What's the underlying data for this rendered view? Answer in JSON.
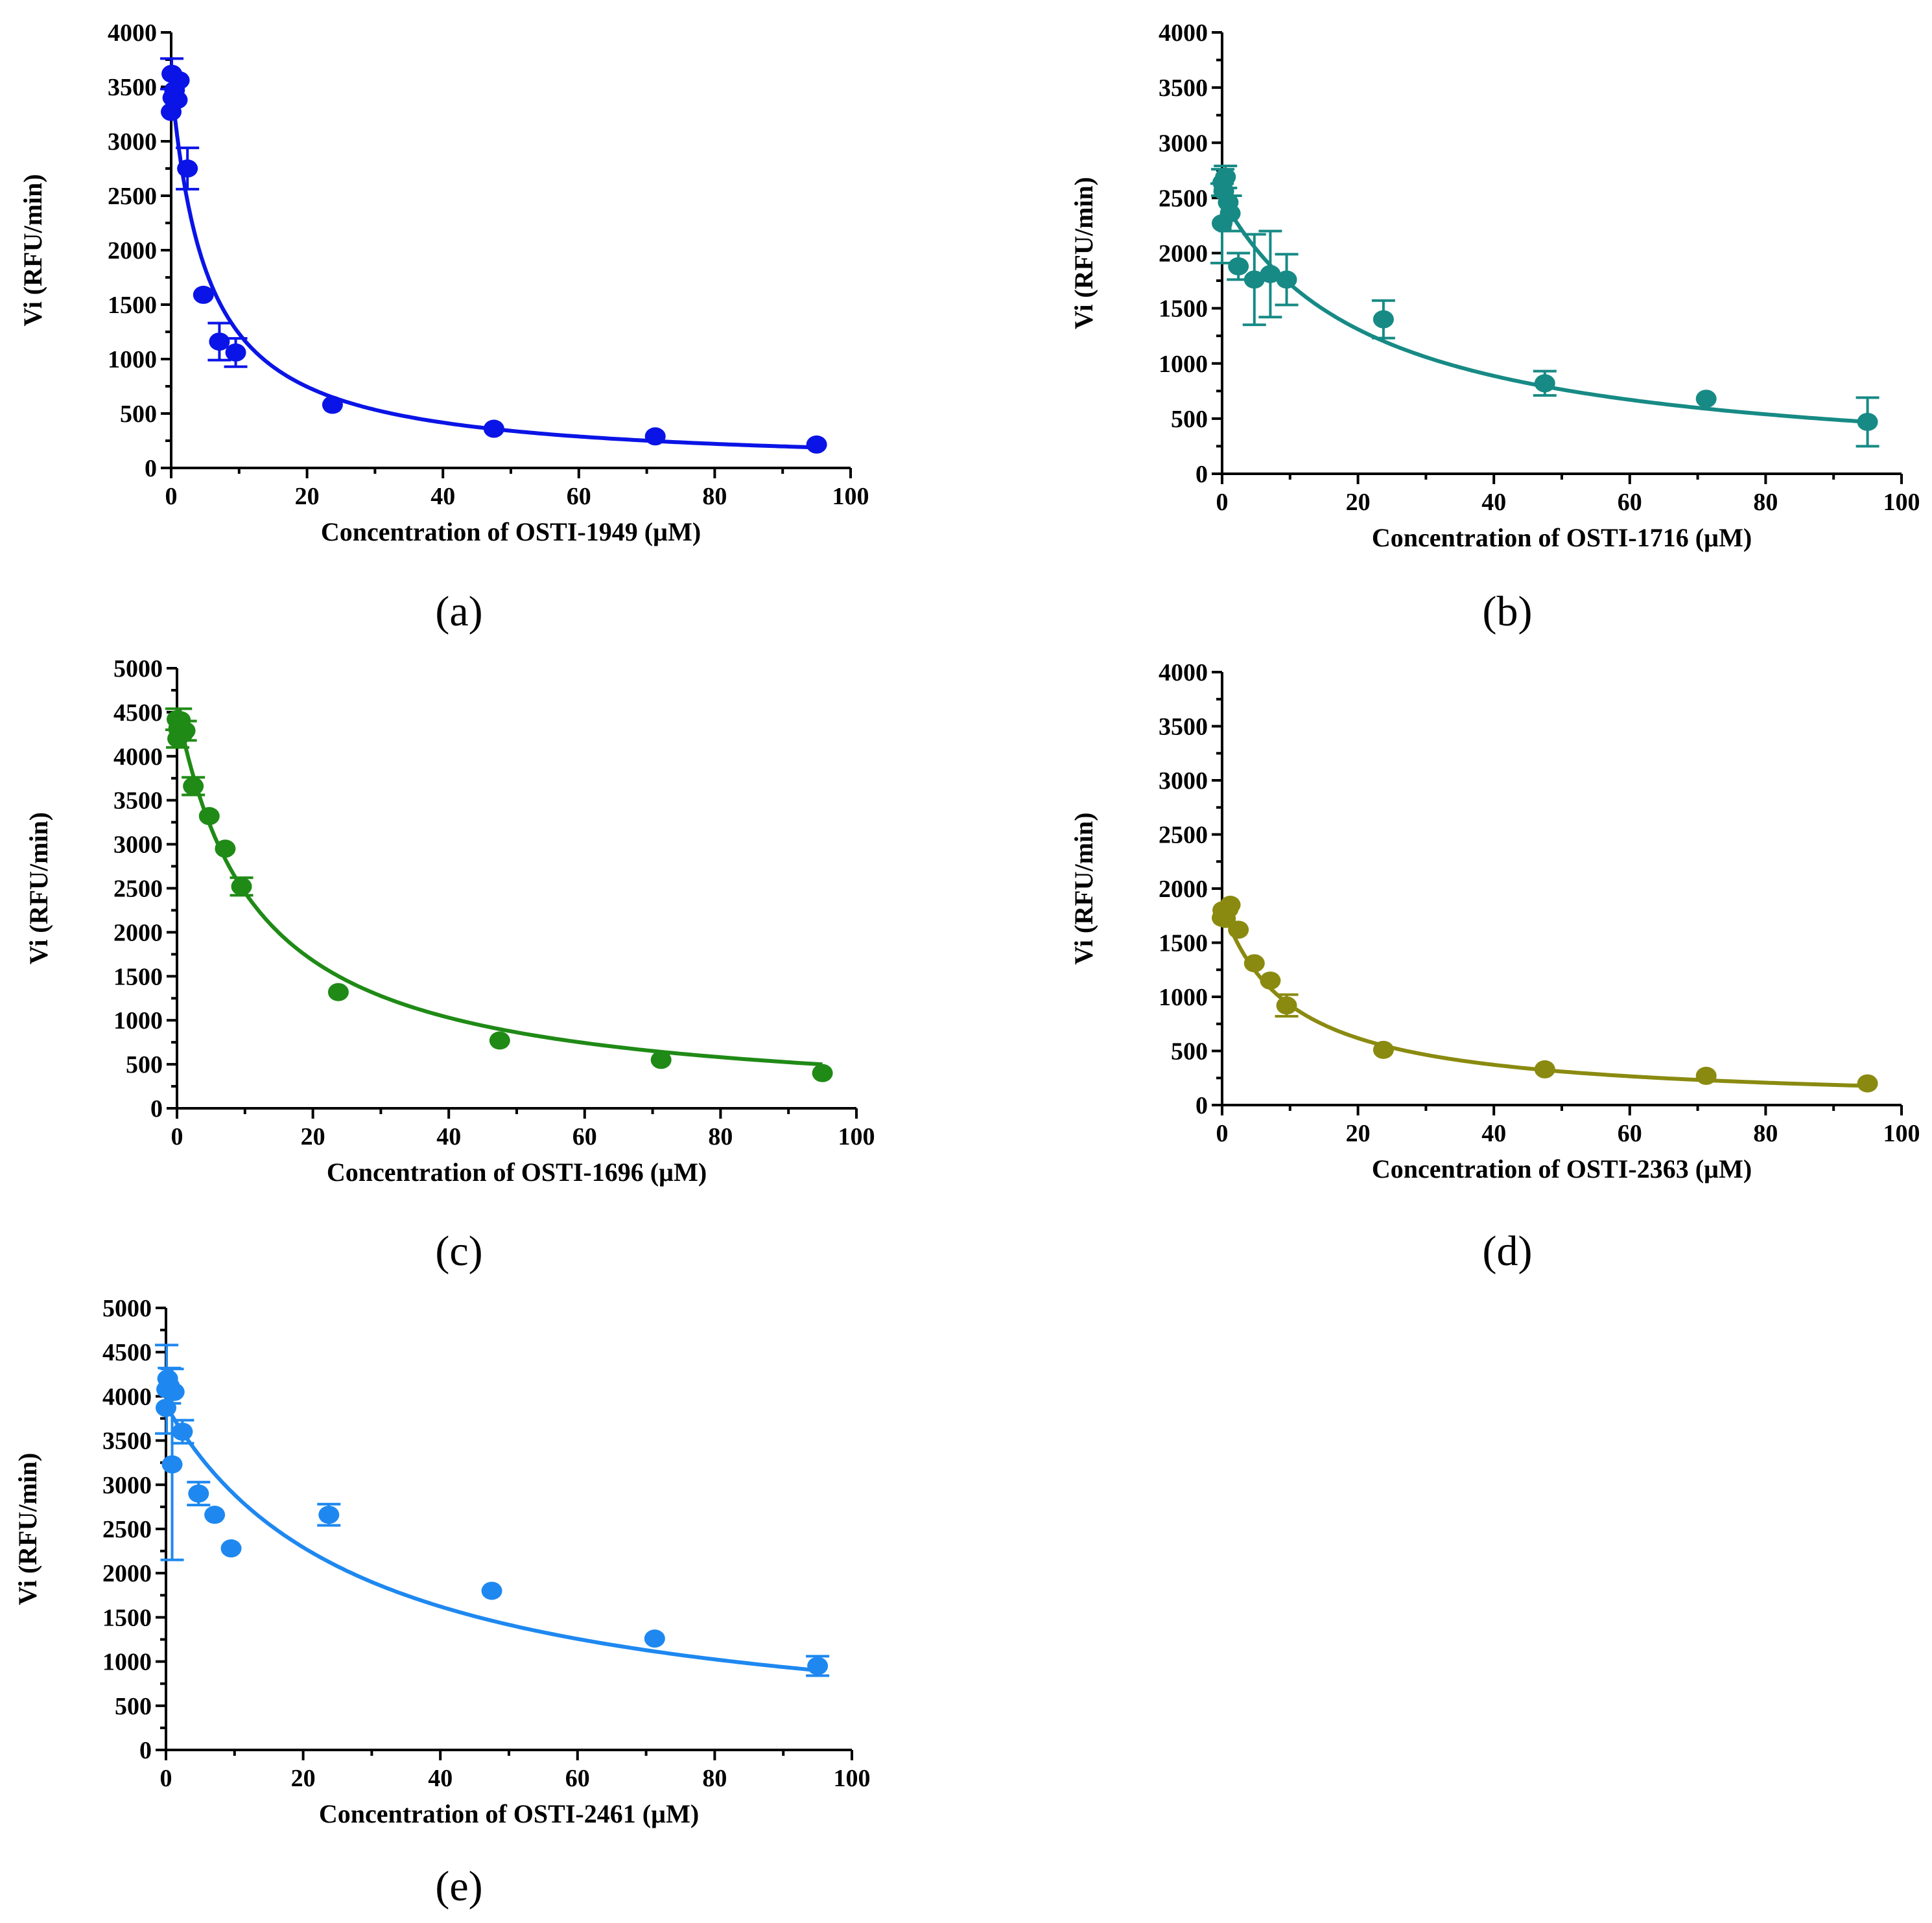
{
  "chart_data": [
    {
      "type": "scatter",
      "panel": "(a)",
      "xlabel": "Concentration of OSTI-1949 (µM)",
      "ylabel": "Vi (RFU/min)",
      "xlim": [
        0,
        100
      ],
      "ylim": [
        0,
        4000
      ],
      "xticks": [
        0,
        20,
        40,
        60,
        80,
        100
      ],
      "yticks": [
        0,
        500,
        1000,
        1500,
        2000,
        2500,
        3000,
        3500,
        4000
      ],
      "color": "#0a14e6",
      "points": [
        {
          "x": 0.0,
          "y": 3270,
          "err": 0
        },
        {
          "x": 0.1,
          "y": 3620,
          "err": 140
        },
        {
          "x": 0.25,
          "y": 3400,
          "err": 0
        },
        {
          "x": 0.5,
          "y": 3470,
          "err": 0
        },
        {
          "x": 0.9,
          "y": 3380,
          "err": 0
        },
        {
          "x": 1.2,
          "y": 3560,
          "err": 0
        },
        {
          "x": 2.4,
          "y": 2750,
          "err": 190
        },
        {
          "x": 4.75,
          "y": 1590,
          "err": 0
        },
        {
          "x": 7.1,
          "y": 1160,
          "err": 170
        },
        {
          "x": 9.5,
          "y": 1060,
          "err": 130
        },
        {
          "x": 23.75,
          "y": 580,
          "err": 0
        },
        {
          "x": 47.5,
          "y": 360,
          "err": 0
        },
        {
          "x": 71.25,
          "y": 290,
          "err": 0
        },
        {
          "x": 95.0,
          "y": 215,
          "err": 0
        }
      ],
      "fit": {
        "model": "v0/(1+x/ic50)",
        "v0": 3560,
        "ic50": 5.3
      }
    },
    {
      "type": "scatter",
      "panel": "(b)",
      "xlabel": "Concentration of OSTI-1716 (µM)",
      "ylabel": "Vi (RFU/min)",
      "xlim": [
        0,
        100
      ],
      "ylim": [
        0,
        4000
      ],
      "xticks": [
        0,
        20,
        40,
        60,
        80,
        100
      ],
      "yticks": [
        0,
        500,
        1000,
        1500,
        2000,
        2500,
        3000,
        3500,
        4000
      ],
      "color": "#178a85",
      "points": [
        {
          "x": 0.0,
          "y": 2270,
          "err": 360
        },
        {
          "x": 0.1,
          "y": 2640,
          "err": 120
        },
        {
          "x": 0.25,
          "y": 2560,
          "err": 0
        },
        {
          "x": 0.5,
          "y": 2690,
          "err": 100
        },
        {
          "x": 0.9,
          "y": 2460,
          "err": 0
        },
        {
          "x": 1.2,
          "y": 2360,
          "err": 160
        },
        {
          "x": 2.4,
          "y": 1880,
          "err": 120
        },
        {
          "x": 4.75,
          "y": 1760,
          "err": 410
        },
        {
          "x": 7.1,
          "y": 1810,
          "err": 390
        },
        {
          "x": 9.5,
          "y": 1760,
          "err": 230
        },
        {
          "x": 23.75,
          "y": 1400,
          "err": 170
        },
        {
          "x": 47.5,
          "y": 820,
          "err": 110
        },
        {
          "x": 71.25,
          "y": 680,
          "err": 0
        },
        {
          "x": 95.0,
          "y": 470,
          "err": 220
        }
      ],
      "fit": {
        "model": "v0/(1+x/ic50)",
        "v0": 2500,
        "ic50": 22
      }
    },
    {
      "type": "scatter",
      "panel": "(c)",
      "xlabel": "Concentration of OSTI-1696 (µM)",
      "ylabel": "Vi (RFU/min)",
      "xlim": [
        0,
        100
      ],
      "ylim": [
        0,
        5000
      ],
      "xticks": [
        0,
        20,
        40,
        60,
        80,
        100
      ],
      "yticks": [
        0,
        500,
        1000,
        1500,
        2000,
        2500,
        3000,
        3500,
        4000,
        4500,
        5000
      ],
      "color": "#1f8a16",
      "points": [
        {
          "x": 0.0,
          "y": 4420,
          "err": 120
        },
        {
          "x": 0.1,
          "y": 4200,
          "err": 100
        },
        {
          "x": 0.25,
          "y": 4320,
          "err": 0
        },
        {
          "x": 0.5,
          "y": 4410,
          "err": 130
        },
        {
          "x": 0.9,
          "y": 4260,
          "err": 0
        },
        {
          "x": 1.2,
          "y": 4290,
          "err": 110
        },
        {
          "x": 2.4,
          "y": 3660,
          "err": 100
        },
        {
          "x": 4.75,
          "y": 3320,
          "err": 0
        },
        {
          "x": 7.1,
          "y": 2950,
          "err": 0
        },
        {
          "x": 9.5,
          "y": 2520,
          "err": 100
        },
        {
          "x": 23.75,
          "y": 1320,
          "err": 0
        },
        {
          "x": 47.5,
          "y": 770,
          "err": 0
        },
        {
          "x": 71.25,
          "y": 550,
          "err": 0
        },
        {
          "x": 95.0,
          "y": 400,
          "err": 0
        }
      ],
      "fit": {
        "model": "v0/(1+x/ic50)",
        "v0": 4550,
        "ic50": 11.7
      }
    },
    {
      "type": "scatter",
      "panel": "(d)",
      "xlabel": "Concentration of OSTI-2363 (µM)",
      "ylabel": "Vi (RFU/min)",
      "xlim": [
        0,
        100
      ],
      "ylim": [
        0,
        4000
      ],
      "xticks": [
        0,
        20,
        40,
        60,
        80,
        100
      ],
      "yticks": [
        0,
        500,
        1000,
        1500,
        2000,
        2500,
        3000,
        3500,
        4000
      ],
      "color": "#8a8a10",
      "points": [
        {
          "x": 0.0,
          "y": 1730,
          "err": 0
        },
        {
          "x": 0.1,
          "y": 1800,
          "err": 0
        },
        {
          "x": 0.25,
          "y": 1760,
          "err": 0
        },
        {
          "x": 0.5,
          "y": 1720,
          "err": 0
        },
        {
          "x": 0.9,
          "y": 1810,
          "err": 0
        },
        {
          "x": 1.2,
          "y": 1850,
          "err": 0
        },
        {
          "x": 2.4,
          "y": 1620,
          "err": 0
        },
        {
          "x": 4.75,
          "y": 1310,
          "err": 0
        },
        {
          "x": 7.1,
          "y": 1150,
          "err": 0
        },
        {
          "x": 9.5,
          "y": 920,
          "err": 100
        },
        {
          "x": 23.75,
          "y": 510,
          "err": 0
        },
        {
          "x": 47.5,
          "y": 330,
          "err": 0
        },
        {
          "x": 71.25,
          "y": 270,
          "err": 0
        },
        {
          "x": 95.0,
          "y": 200,
          "err": 0
        }
      ],
      "fit": {
        "model": "v0/(1+x/ic50)",
        "v0": 1830,
        "ic50": 10.2
      }
    },
    {
      "type": "scatter",
      "panel": "(e)",
      "xlabel": "Concentration of OSTI-2461 (µM)",
      "ylabel": "Vi (RFU/min)",
      "xlim": [
        0,
        100
      ],
      "ylim": [
        0,
        5000
      ],
      "xticks": [
        0,
        20,
        40,
        60,
        80,
        100
      ],
      "yticks": [
        0,
        500,
        1000,
        1500,
        2000,
        2500,
        3000,
        3500,
        4000,
        4500,
        5000
      ],
      "color": "#1e88f0",
      "points": [
        {
          "x": 0.0,
          "y": 3870,
          "err": 0
        },
        {
          "x": 0.1,
          "y": 4080,
          "err": 500
        },
        {
          "x": 0.25,
          "y": 4200,
          "err": 0
        },
        {
          "x": 0.5,
          "y": 4120,
          "err": 200
        },
        {
          "x": 0.9,
          "y": 3230,
          "err": 1080
        },
        {
          "x": 1.2,
          "y": 4050,
          "err": 0
        },
        {
          "x": 2.4,
          "y": 3600,
          "err": 130
        },
        {
          "x": 4.75,
          "y": 2900,
          "err": 130
        },
        {
          "x": 7.1,
          "y": 2660,
          "err": 0
        },
        {
          "x": 9.5,
          "y": 2280,
          "err": 0
        },
        {
          "x": 23.75,
          "y": 2660,
          "err": 120
        },
        {
          "x": 47.5,
          "y": 1800,
          "err": 0
        },
        {
          "x": 71.25,
          "y": 1260,
          "err": 0
        },
        {
          "x": 95.0,
          "y": 950,
          "err": 110
        }
      ],
      "fit": {
        "model": "v0/(1+x/ic50)",
        "v0": 3900,
        "ic50": 28.5
      }
    }
  ]
}
